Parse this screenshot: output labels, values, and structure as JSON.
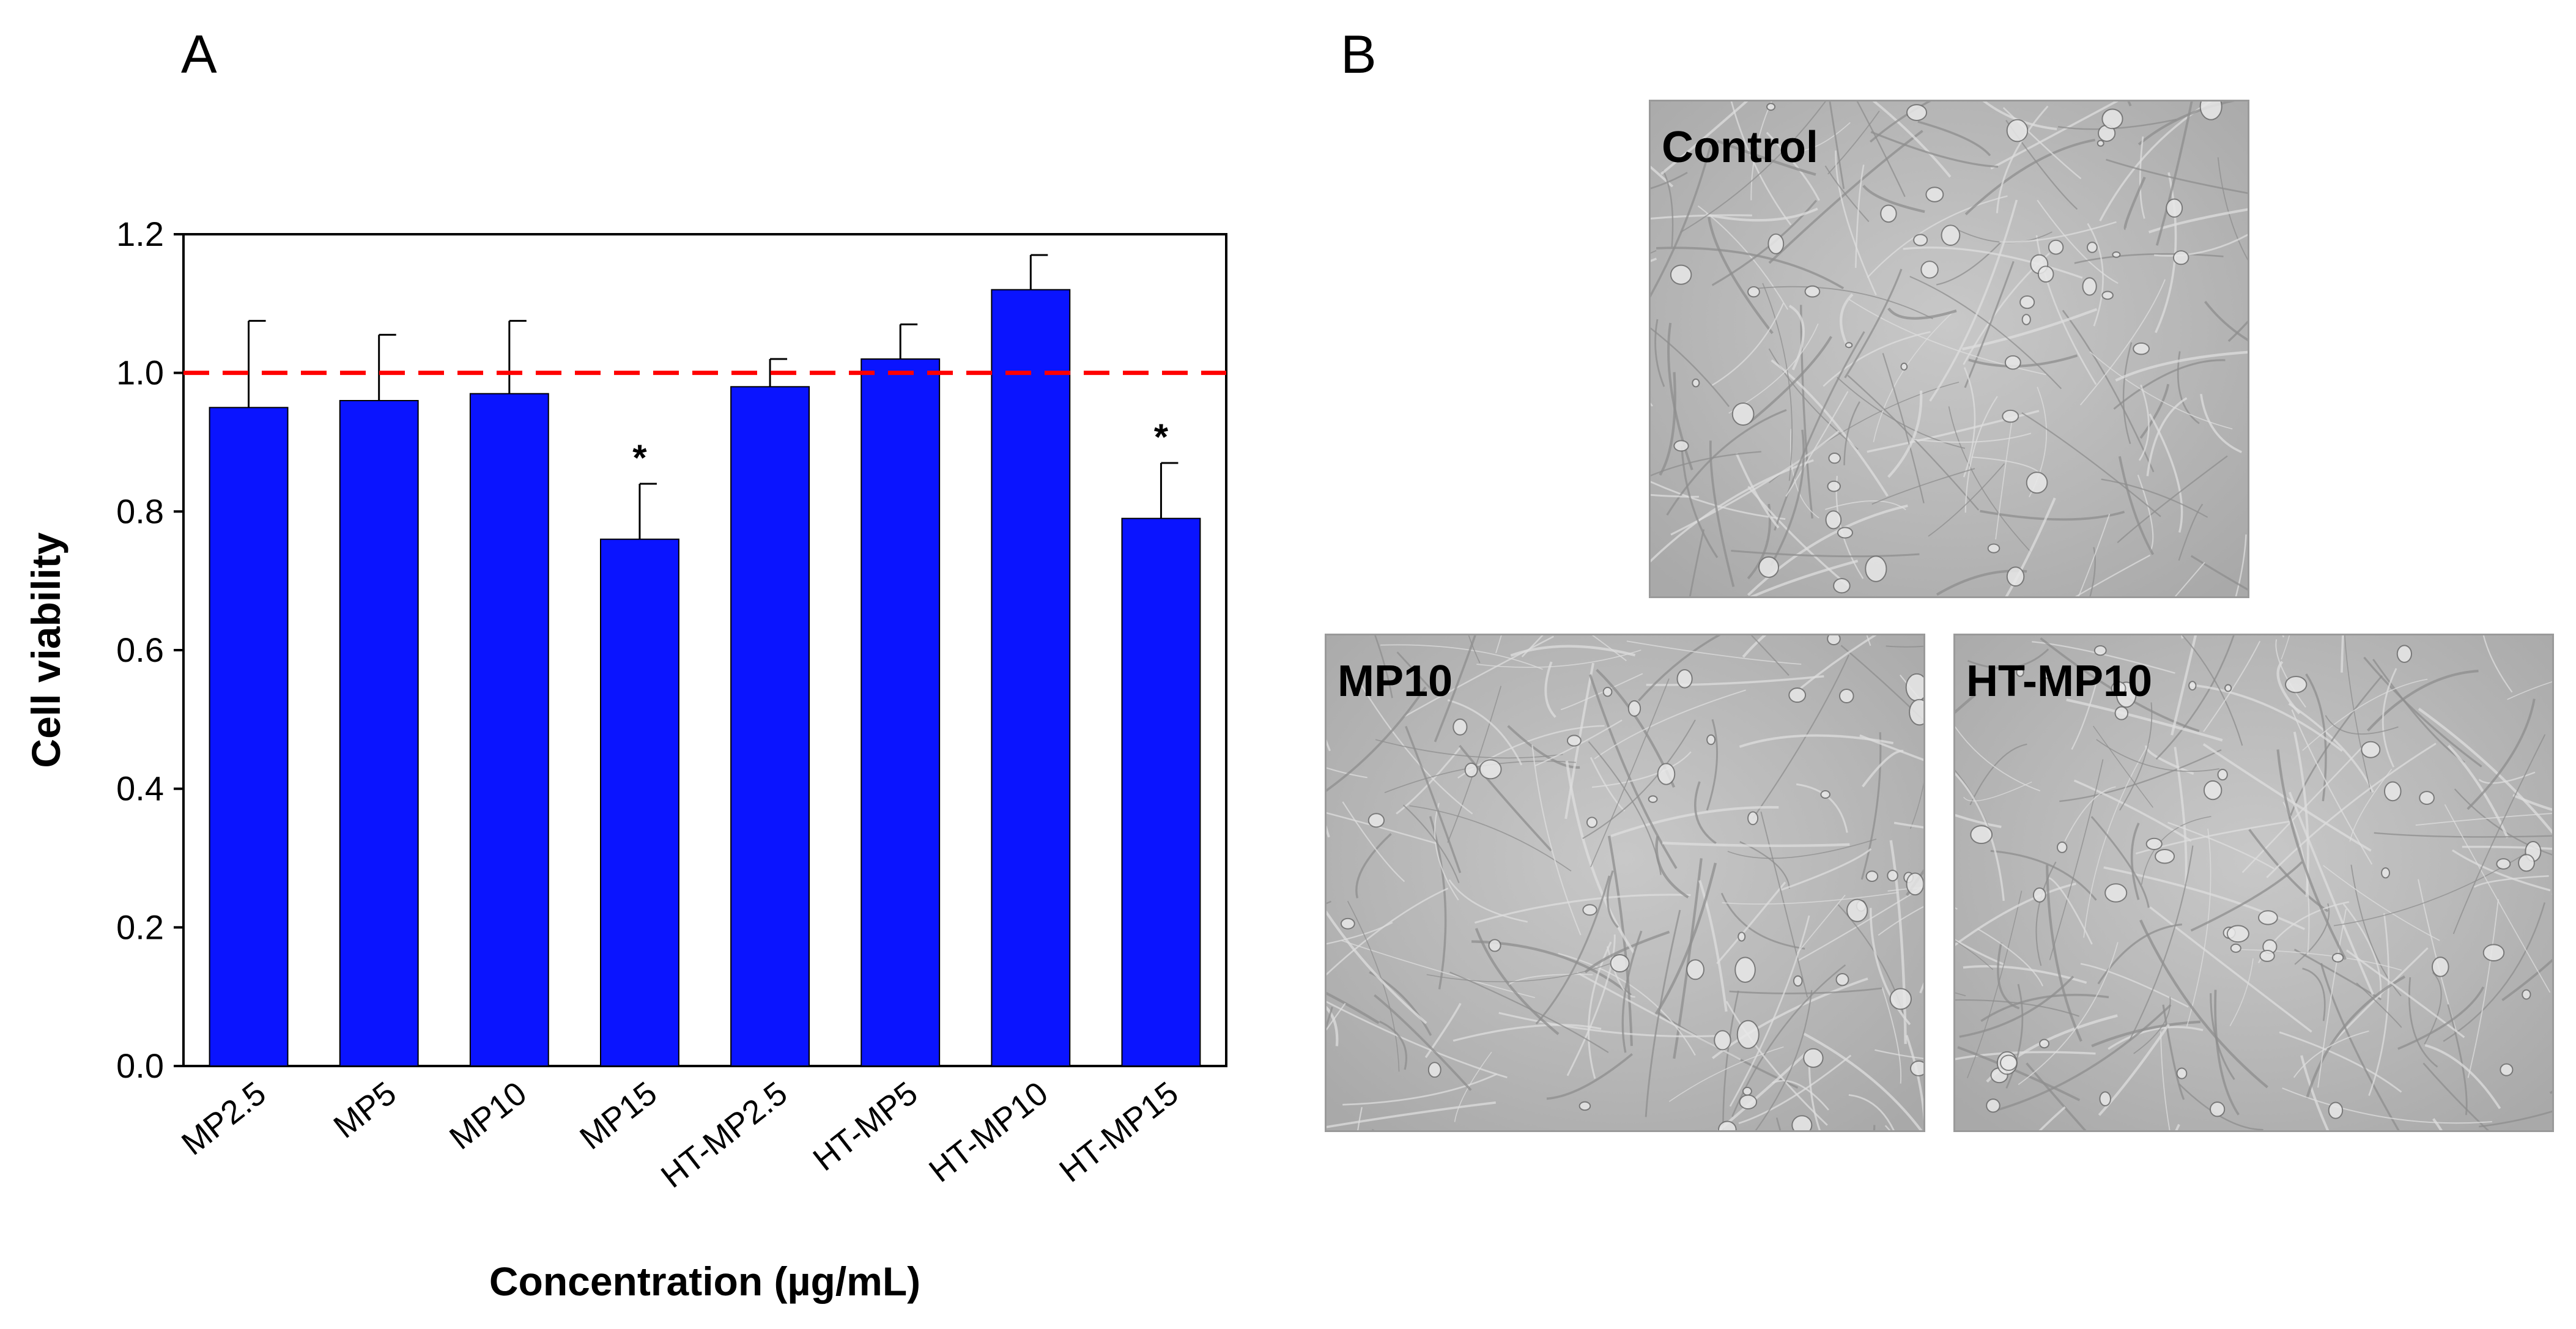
{
  "panels": {
    "a_label": "A",
    "b_label": "B"
  },
  "chart_data": {
    "type": "bar",
    "title": "",
    "xlabel": "Concentration (µg/mL)",
    "ylabel": "Cell viability",
    "categories": [
      "MP2.5",
      "MP5",
      "MP10",
      "MP15",
      "HT-MP2.5",
      "HT-MP5",
      "HT-MP10",
      "HT-MP15"
    ],
    "values": [
      0.95,
      0.96,
      0.97,
      0.76,
      0.98,
      1.02,
      1.12,
      0.79
    ],
    "errors": [
      0.125,
      0.095,
      0.105,
      0.08,
      0.04,
      0.05,
      0.05,
      0.08
    ],
    "significance": [
      "",
      "",
      "",
      "*",
      "",
      "",
      "",
      "*"
    ],
    "ylim": [
      0,
      1.2
    ],
    "yticks": [
      0.0,
      0.2,
      0.4,
      0.6,
      0.8,
      1.0,
      1.2
    ],
    "reference_line": 1.0,
    "bar_color": "#0a14ff",
    "reference_color": "#ff0000",
    "grid": false
  },
  "micrographs": [
    {
      "label": "Control"
    },
    {
      "label": "MP10"
    },
    {
      "label": "HT-MP10"
    }
  ]
}
